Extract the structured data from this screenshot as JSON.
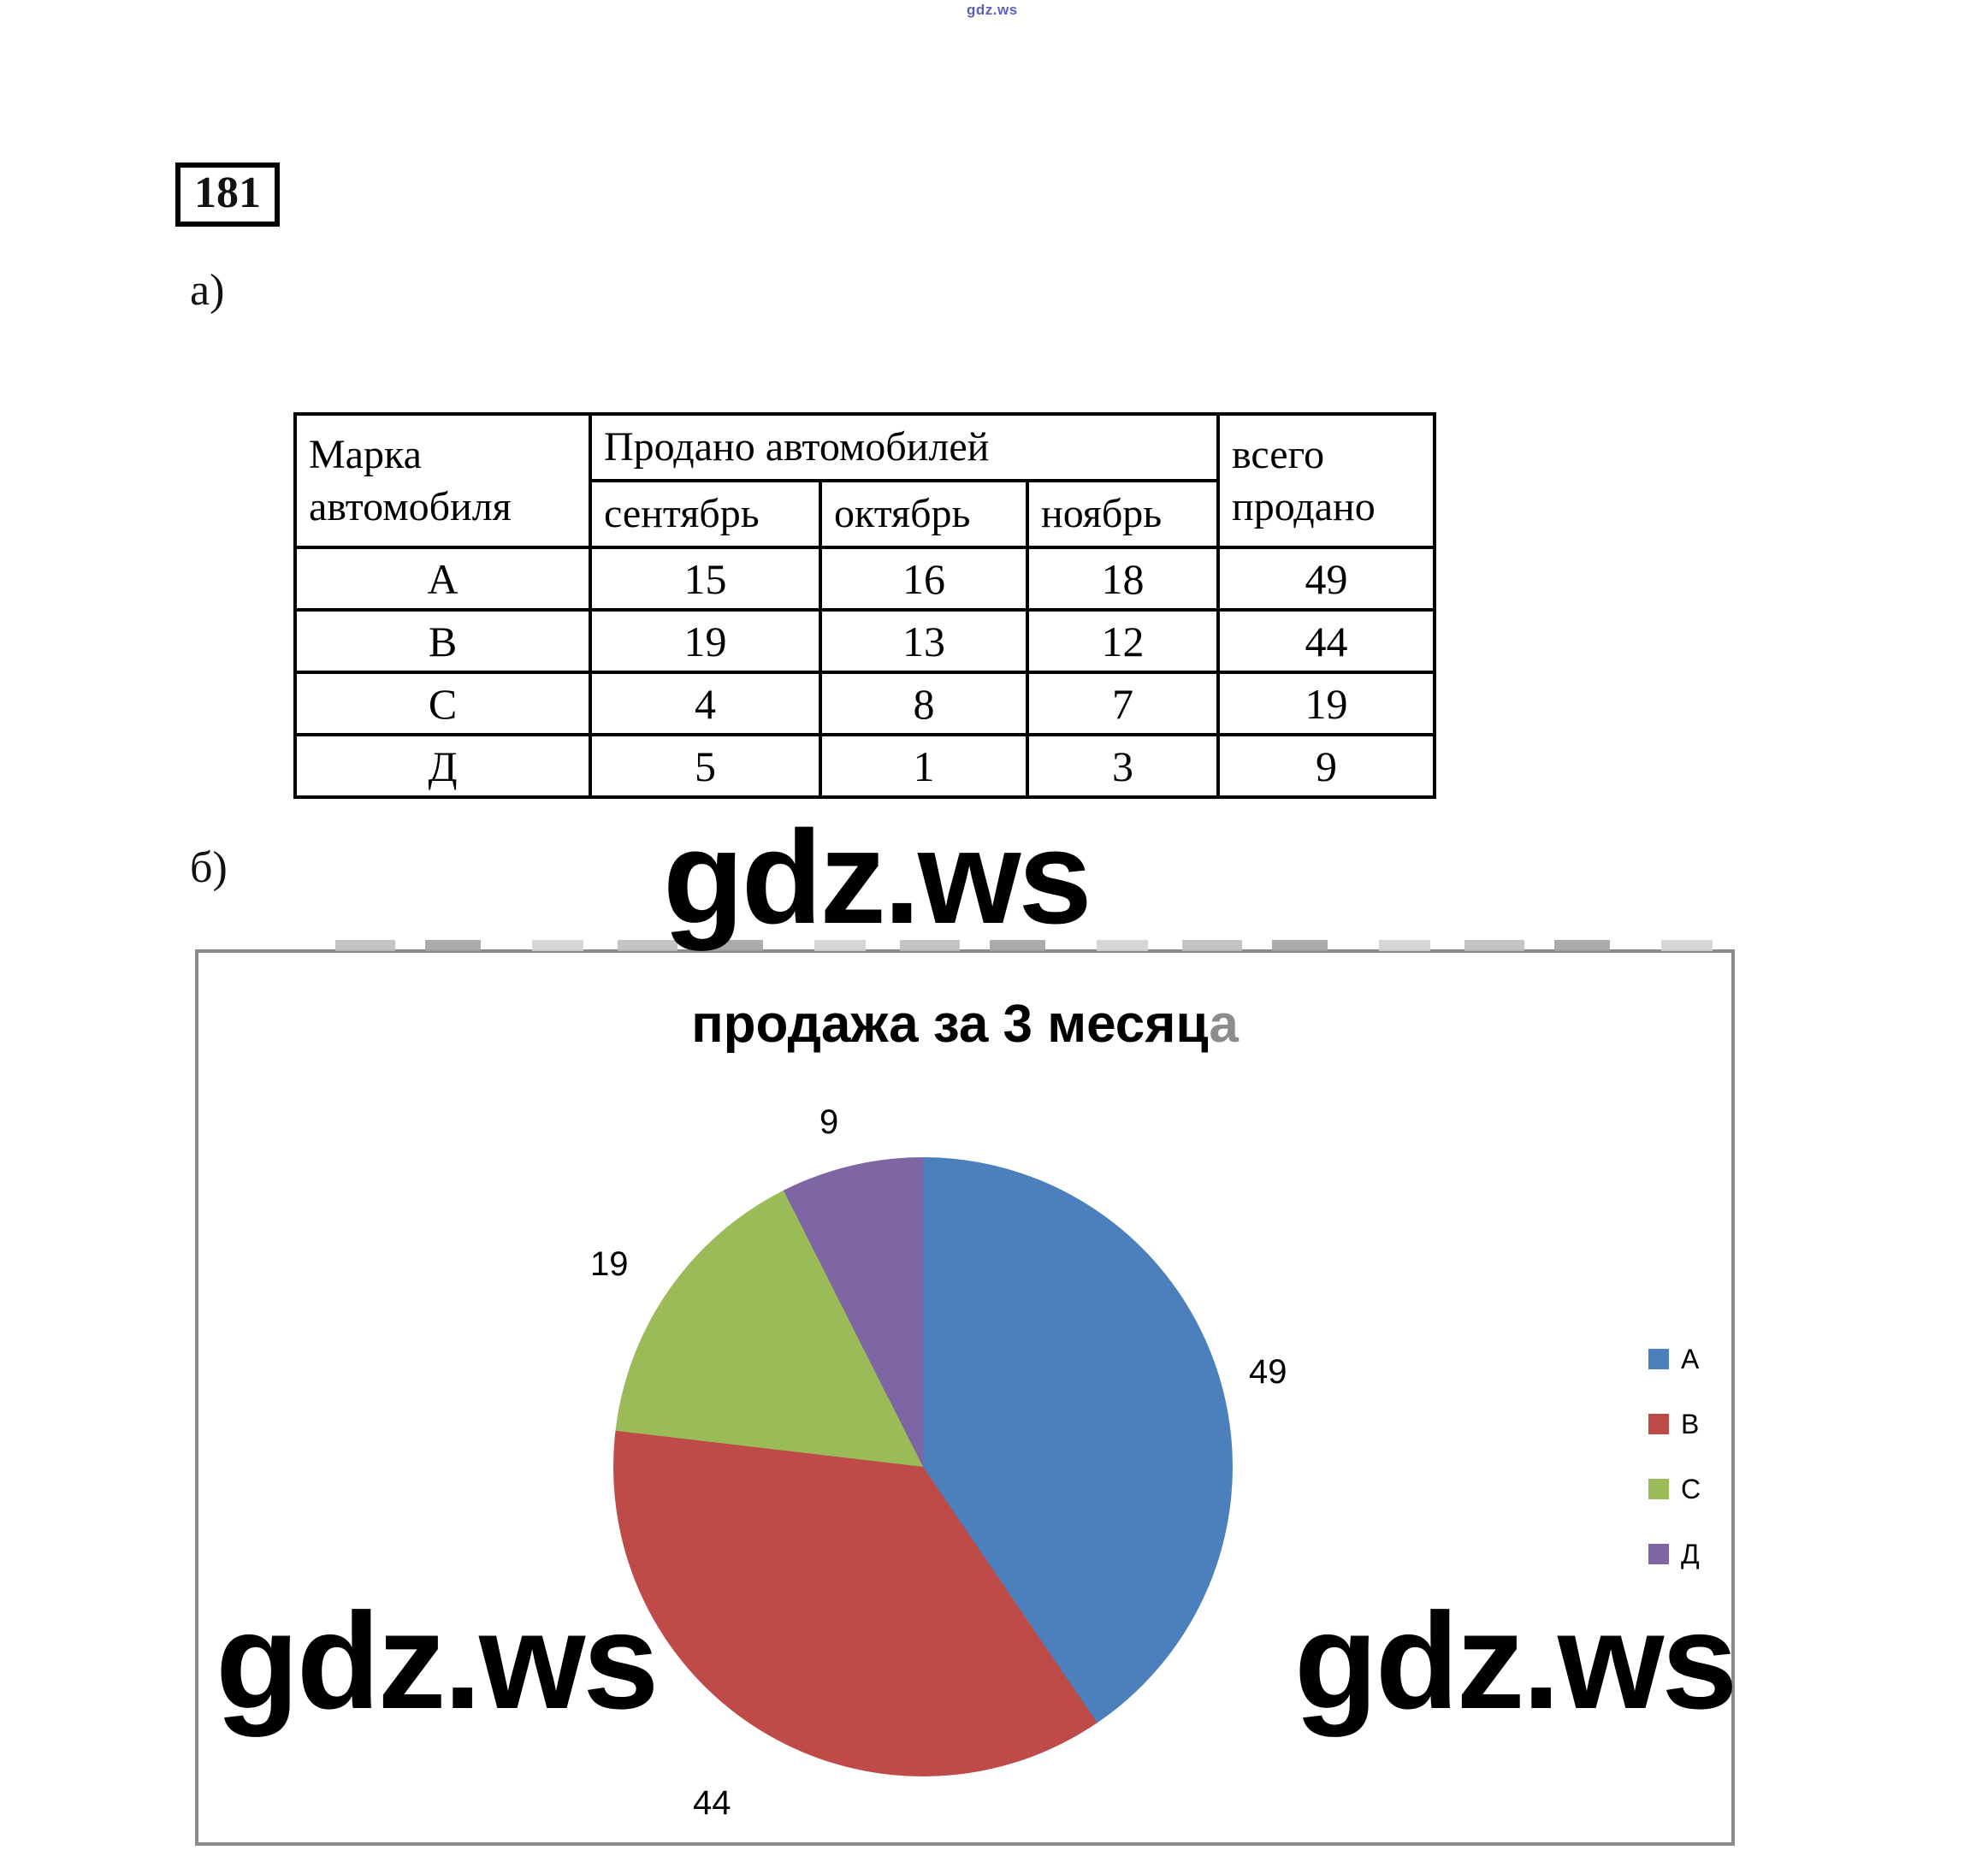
{
  "page": {
    "top_watermark": "gdz.ws",
    "task_number": "181",
    "part_a_label": "а)",
    "part_b_label": "б)",
    "watermark": "gdz.ws"
  },
  "table": {
    "header": {
      "brand": "Марка автомобиля",
      "sold": "Продано автомобилей",
      "months": [
        "сентябрь",
        "октябрь",
        "ноябрь"
      ],
      "total": "всего продано"
    },
    "rows": [
      {
        "brand": "А",
        "values": [
          15,
          16,
          18
        ],
        "total": 49
      },
      {
        "brand": "В",
        "values": [
          19,
          13,
          12
        ],
        "total": 44
      },
      {
        "brand": "С",
        "values": [
          4,
          8,
          7
        ],
        "total": 19
      },
      {
        "brand": "Д",
        "values": [
          5,
          1,
          3
        ],
        "total": 9
      }
    ]
  },
  "chart_data": {
    "type": "pie",
    "title": "продажа за 3 месяца",
    "title_black_part": "продажа за 3 месяц",
    "title_gray_part": "а",
    "categories": [
      "А",
      "В",
      "С",
      "Д"
    ],
    "values": [
      49,
      44,
      19,
      9
    ],
    "data_labels": [
      49,
      44,
      19,
      9
    ],
    "colors": [
      "#4C80BC",
      "#BE4B48",
      "#9BBB59",
      "#7D66A3"
    ],
    "start_angle_deg": 0,
    "direction": "clockwise",
    "legend_position": "right",
    "border_color": "#8a8a8a"
  }
}
